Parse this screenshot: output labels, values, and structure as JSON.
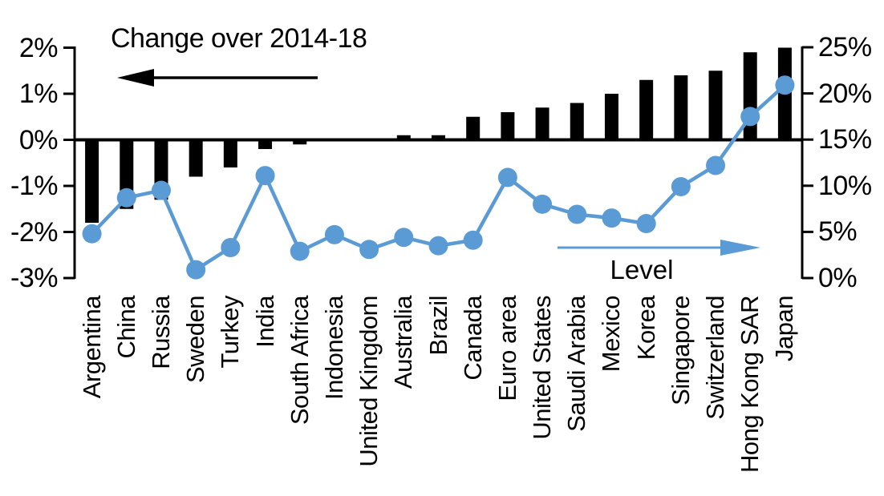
{
  "chart_data": {
    "type": "bar",
    "subtype": "dual-axis bar + line with markers",
    "title": "",
    "grid": false,
    "legend_position": "none",
    "categories": [
      "Argentina",
      "China",
      "Russia",
      "Sweden",
      "Turkey",
      "India",
      "South Africa",
      "Indonesia",
      "United Kingdom",
      "Australia",
      "Brazil",
      "Canada",
      "Euro area",
      "United States",
      "Saudi Arabia",
      "Mexico",
      "Korea",
      "Singapore",
      "Switzerland",
      "Hong Kong SAR",
      "Japan"
    ],
    "series": [
      {
        "name": "Change over 2014-18",
        "type": "bar",
        "axis": "left",
        "color": "#000000",
        "unit": "%",
        "values": [
          -1.8,
          -1.5,
          -1.3,
          -0.8,
          -0.6,
          -0.2,
          -0.1,
          0,
          0,
          0.1,
          0.1,
          0.5,
          0.6,
          0.7,
          0.8,
          1.0,
          1.3,
          1.4,
          1.5,
          1.9,
          2.0
        ]
      },
      {
        "name": "Level",
        "type": "line",
        "axis": "right",
        "color": "#5b9bd5",
        "unit": "%",
        "values": [
          4.8,
          8.7,
          9.5,
          0.9,
          3.3,
          11.1,
          2.9,
          4.7,
          3.1,
          4.4,
          3.5,
          4.1,
          10.9,
          8.0,
          6.9,
          6.5,
          5.9,
          9.9,
          12.2,
          17.5,
          20.9
        ]
      }
    ],
    "left_axis": {
      "tick_labels": [
        "2%",
        "1%",
        "0%",
        "-1%",
        "-2%",
        "-3%"
      ],
      "tick_values": [
        2,
        1,
        0,
        -1,
        -2,
        -3
      ],
      "min": -3,
      "max": 2
    },
    "right_axis": {
      "tick_labels": [
        "25%",
        "20%",
        "15%",
        "10%",
        "5%",
        "0%"
      ],
      "tick_values": [
        25,
        20,
        15,
        10,
        5,
        0
      ],
      "min": 0,
      "max": 25
    },
    "annotations": {
      "bar_series_label": "Change over 2014-18",
      "line_series_label": "Level",
      "bar_arrow_direction": "left",
      "line_arrow_direction": "right"
    },
    "colors": {
      "bar": "#000000",
      "line": "#5b9bd5",
      "axis": "#000000",
      "background": "#ffffff"
    }
  }
}
